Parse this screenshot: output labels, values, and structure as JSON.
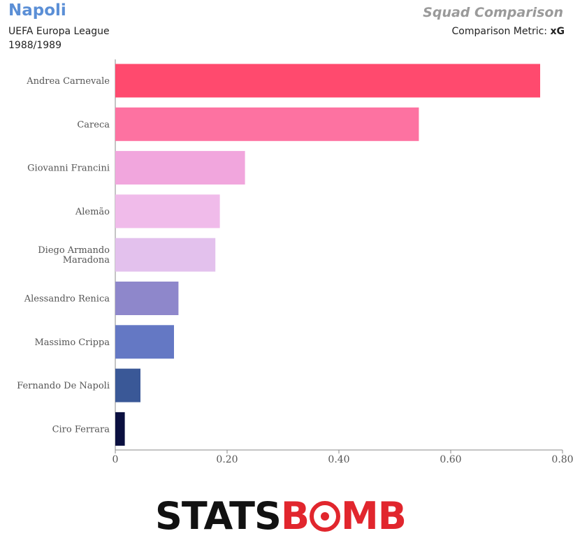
{
  "header": {
    "team": "Napoli",
    "competition": "UEFA Europa League",
    "season": "1988/1989",
    "title": "Squad Comparison",
    "metric_label": "Comparison Metric:",
    "metric_value": "xG"
  },
  "logo": {
    "part1": "STATS",
    "part2a": "B",
    "part2b": "MB",
    "icon": "target-icon"
  },
  "chart_data": {
    "type": "bar",
    "orientation": "horizontal",
    "categories": [
      "Andrea Carnevale",
      "Careca",
      "Giovanni Francini",
      "Alemão",
      "Diego Armando Maradona",
      "Alessandro Renica",
      "Massimo Crippa",
      "Fernando De Napoli",
      "Ciro Ferrara"
    ],
    "category_lines": [
      [
        "Andrea Carnevale"
      ],
      [
        "Careca"
      ],
      [
        "Giovanni Francini"
      ],
      [
        "Alemão"
      ],
      [
        "Diego Armando",
        "Maradona"
      ],
      [
        "Alessandro Renica"
      ],
      [
        "Massimo Crippa"
      ],
      [
        "Fernando De Napoli"
      ],
      [
        "Ciro Ferrara"
      ]
    ],
    "values": [
      0.76,
      0.543,
      0.232,
      0.187,
      0.179,
      0.113,
      0.105,
      0.045,
      0.017
    ],
    "colors": [
      "#ff4a6e",
      "#fd72a1",
      "#f1a6dd",
      "#f0bbea",
      "#e3c1ed",
      "#8e87cb",
      "#6478c4",
      "#3a5897",
      "#0b1040"
    ],
    "xlim": [
      0,
      0.8
    ],
    "xticks": [
      0,
      0.2,
      0.4,
      0.6,
      0.8
    ],
    "xtick_labels": [
      "0",
      "0.20",
      "0.40",
      "0.60",
      "0.80"
    ],
    "grid": false
  }
}
